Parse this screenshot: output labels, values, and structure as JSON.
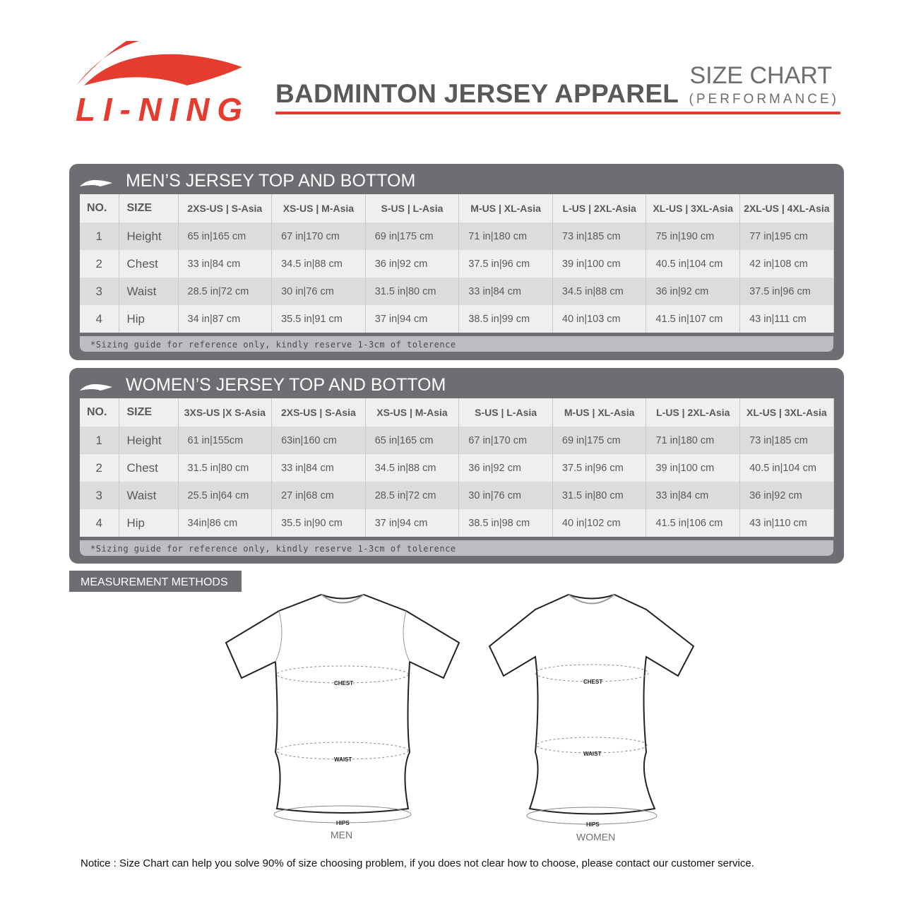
{
  "brand": {
    "logo_text": "LI-NING",
    "color": "#e63c2f"
  },
  "header": {
    "title": "BADMINTON JERSEY APPAREL",
    "size_chart": "SIZE CHART",
    "subtitle": "(PERFORMANCE)"
  },
  "men": {
    "title": "MEN’S JERSEY TOP AND BOTTOM",
    "headers": [
      "NO.",
      "SIZE",
      "2XS-US | S-Asia",
      "XS-US | M-Asia",
      "S-US | L-Asia",
      "M-US | XL-Asia",
      "L-US | 2XL-Asia",
      "XL-US | 3XL-Asia",
      "2XL-US | 4XL-Asia"
    ],
    "rows": [
      {
        "no": "1",
        "size": "Height",
        "values": [
          "65 in|165 cm",
          "67 in|170 cm",
          "69 in|175 cm",
          "71 in|180 cm",
          "73 in|185 cm",
          "75 in|190 cm",
          "77 in|195 cm"
        ]
      },
      {
        "no": "2",
        "size": "Chest",
        "values": [
          "33 in|84 cm",
          "34.5 in|88 cm",
          "36 in|92 cm",
          "37.5 in|96 cm",
          "39 in|100 cm",
          "40.5 in|104 cm",
          "42 in|108 cm"
        ]
      },
      {
        "no": "3",
        "size": "Waist",
        "values": [
          "28.5 in|72 cm",
          "30 in|76 cm",
          "31.5 in|80 cm",
          "33 in|84 cm",
          "34.5 in|88 cm",
          "36 in|92 cm",
          "37.5 in|96 cm"
        ]
      },
      {
        "no": "4",
        "size": "Hip",
        "values": [
          "34 in|87 cm",
          "35.5 in|91 cm",
          "37 in|94 cm",
          "38.5 in|99 cm",
          "40 in|103 cm",
          "41.5 in|107 cm",
          "43 in|111 cm"
        ]
      }
    ],
    "footnote": "*Sizing guide for reference only, kindly reserve 1-3cm of tolerence"
  },
  "women": {
    "title": "WOMEN’S JERSEY TOP AND BOTTOM",
    "headers": [
      "NO.",
      "SIZE",
      "3XS-US |X S-Asia",
      "2XS-US | S-Asia",
      "XS-US | M-Asia",
      "S-US | L-Asia",
      "M-US | XL-Asia",
      "L-US | 2XL-Asia",
      "XL-US | 3XL-Asia"
    ],
    "rows": [
      {
        "no": "1",
        "size": "Height",
        "values": [
          "61 in|155cm",
          "63in|160 cm",
          "65 in|165 cm",
          "67 in|170 cm",
          "69 in|175 cm",
          "71 in|180 cm",
          "73 in|185 cm"
        ]
      },
      {
        "no": "2",
        "size": "Chest",
        "values": [
          "31.5 in|80 cm",
          "33 in|84 cm",
          "34.5 in|88 cm",
          "36 in|92 cm",
          "37.5 in|96 cm",
          "39 in|100 cm",
          "40.5 in|104 cm"
        ]
      },
      {
        "no": "3",
        "size": "Waist",
        "values": [
          "25.5 in|64 cm",
          "27 in|68 cm",
          "28.5 in|72 cm",
          "30 in|76 cm",
          "31.5 in|80 cm",
          "33 in|84 cm",
          "36 in|92 cm"
        ]
      },
      {
        "no": "4",
        "size": "Hip",
        "values": [
          "34in|86 cm",
          "35.5 in|90 cm",
          "37 in|94 cm",
          "38.5 in|98 cm",
          "40 in|102 cm",
          "41.5 in|106 cm",
          "43 in|110 cm"
        ]
      }
    ],
    "footnote": "*Sizing guide for reference only, kindly reserve 1-3cm of tolerence"
  },
  "measurement": {
    "title": "MEASUREMENT METHODS",
    "labels": {
      "chest": "CHEST",
      "waist": "WAIST",
      "hips": "HIPS"
    },
    "men_caption": "MEN",
    "women_caption": "WOMEN"
  },
  "notice": "Notice : Size Chart can help you solve 90% of size choosing problem, if you does not clear how to choose, please contact our customer service."
}
